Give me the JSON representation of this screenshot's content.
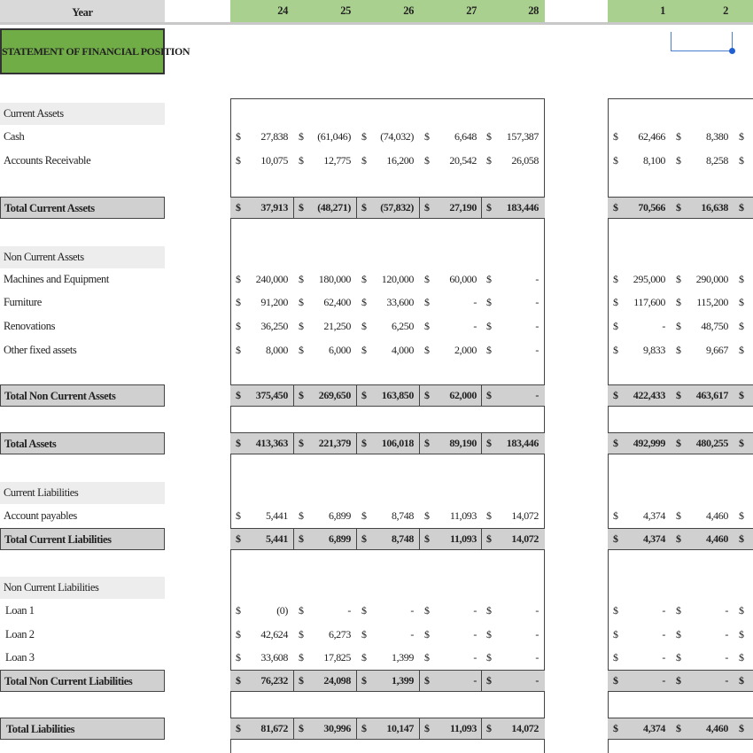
{
  "header": {
    "year_label": "Year",
    "years_a": [
      "24",
      "25",
      "26",
      "27",
      "28"
    ],
    "years_b": [
      "1",
      "2"
    ]
  },
  "title": "STATEMENT OF FINANCIAL POSITION",
  "currency": "$",
  "rows": [
    {
      "type": "section",
      "label": "Current Assets"
    },
    {
      "type": "item",
      "label": "Cash",
      "a": [
        "27,838",
        "(61,046)",
        "(74,032)",
        "6,648",
        "157,387"
      ],
      "b": [
        "62,466",
        "8,380"
      ]
    },
    {
      "type": "item",
      "label": "Accounts Receivable",
      "a": [
        "10,075",
        "12,775",
        "16,200",
        "20,542",
        "26,058"
      ],
      "b": [
        "8,100",
        "8,258"
      ]
    },
    {
      "type": "total",
      "label": "Total Current Assets",
      "a": [
        "37,913",
        "(48,271)",
        "(57,832)",
        "27,190",
        "183,446"
      ],
      "b": [
        "70,566",
        "16,638"
      ]
    },
    {
      "type": "section",
      "label": "Non Current Assets"
    },
    {
      "type": "item",
      "label": "Machines and Equipment",
      "a": [
        "240,000",
        "180,000",
        "120,000",
        "60,000",
        "-"
      ],
      "b": [
        "295,000",
        "290,000"
      ]
    },
    {
      "type": "item",
      "label": "Furniture",
      "a": [
        "91,200",
        "62,400",
        "33,600",
        "-",
        "-"
      ],
      "b": [
        "117,600",
        "115,200"
      ]
    },
    {
      "type": "item",
      "label": "Renovations",
      "a": [
        "36,250",
        "21,250",
        "6,250",
        "-",
        "-"
      ],
      "b": [
        "-",
        "48,750"
      ]
    },
    {
      "type": "item",
      "label": "Other fixed assets",
      "a": [
        "8,000",
        "6,000",
        "4,000",
        "2,000",
        "-"
      ],
      "b": [
        "9,833",
        "9,667"
      ]
    },
    {
      "type": "total",
      "label": "Total Non Current Assets",
      "a": [
        "375,450",
        "269,650",
        "163,850",
        "62,000",
        "-"
      ],
      "b": [
        "422,433",
        "463,617"
      ]
    },
    {
      "type": "total",
      "label": "Total Assets",
      "a": [
        "413,363",
        "221,379",
        "106,018",
        "89,190",
        "183,446"
      ],
      "b": [
        "492,999",
        "480,255"
      ]
    },
    {
      "type": "section",
      "label": "Current Liabilities"
    },
    {
      "type": "item",
      "label": "Account payables",
      "a": [
        "5,441",
        "6,899",
        "8,748",
        "11,093",
        "14,072"
      ],
      "b": [
        "4,374",
        "4,460"
      ]
    },
    {
      "type": "total",
      "label": "Total Current Liabilities",
      "a": [
        "5,441",
        "6,899",
        "8,748",
        "11,093",
        "14,072"
      ],
      "b": [
        "4,374",
        "4,460"
      ]
    },
    {
      "type": "section",
      "label": "Non Current Liabilities"
    },
    {
      "type": "item",
      "label": "Loan 1",
      "indent": true,
      "a": [
        "(0)",
        "-",
        "-",
        "-",
        "-"
      ],
      "b": [
        "-",
        "-"
      ]
    },
    {
      "type": "item",
      "label": "Loan 2",
      "indent": true,
      "a": [
        "42,624",
        "6,273",
        "-",
        "-",
        "-"
      ],
      "b": [
        "-",
        "-"
      ]
    },
    {
      "type": "item",
      "label": "Loan 3",
      "indent": true,
      "a": [
        "33,608",
        "17,825",
        "1,399",
        "-",
        "-"
      ],
      "b": [
        "-",
        "-"
      ]
    },
    {
      "type": "total",
      "label": "Total Non Current Liabilities",
      "a": [
        "76,232",
        "24,098",
        "1,399",
        "-",
        "-"
      ],
      "b": [
        "-",
        "-"
      ]
    },
    {
      "type": "total",
      "label": "Total Liabilities",
      "indent": true,
      "a": [
        "81,672",
        "30,996",
        "10,147",
        "11,093",
        "14,072"
      ],
      "b": [
        "4,374",
        "4,460"
      ]
    }
  ]
}
